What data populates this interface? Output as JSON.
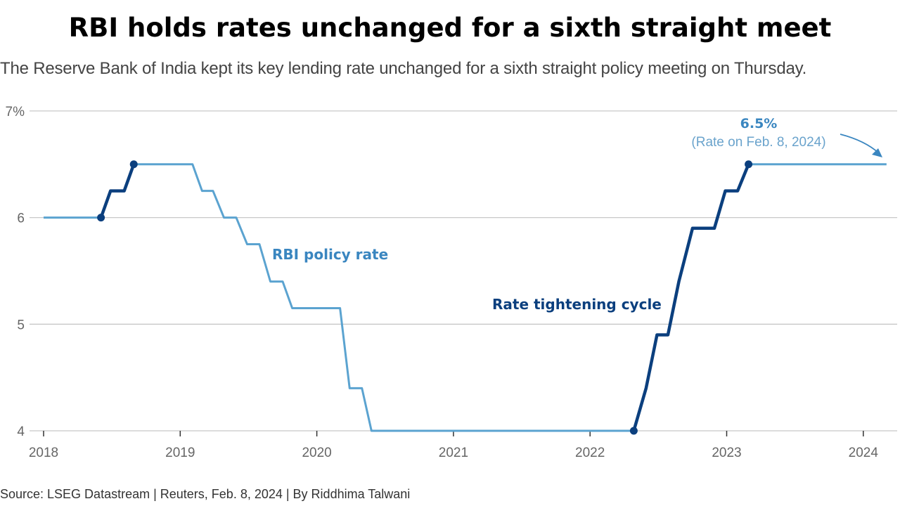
{
  "title": "RBI holds rates unchanged for a sixth straight meet",
  "subtitle": "The Reserve Bank of India kept its key lending rate unchanged for a sixth straight policy meeting on Thursday.",
  "source": "Source: LSEG Datastream | Reuters, Feb. 8, 2024 | By Riddhima Talwani",
  "chart_data": {
    "type": "line",
    "title": "RBI holds rates unchanged for a sixth straight meet",
    "xlabel": "",
    "ylabel": "",
    "xlim": [
      2018,
      2024.2
    ],
    "ylim": [
      4,
      7
    ],
    "y_ticks": [
      {
        "v": 7,
        "label": "7%"
      },
      {
        "v": 6,
        "label": "6"
      },
      {
        "v": 5,
        "label": "5"
      },
      {
        "v": 4,
        "label": "4"
      }
    ],
    "x_ticks": [
      {
        "v": 2018,
        "label": "2018"
      },
      {
        "v": 2019,
        "label": "2019"
      },
      {
        "v": 2020,
        "label": "2020"
      },
      {
        "v": 2021,
        "label": "2021"
      },
      {
        "v": 2022,
        "label": "2022"
      },
      {
        "v": 2023,
        "label": "2023"
      },
      {
        "v": 2024,
        "label": "2024"
      }
    ],
    "grid": true,
    "colors": {
      "policy": "#5ba3d0",
      "tightening": "#0b3f7e",
      "annotation": "#3a86c0"
    },
    "series": [
      {
        "name": "RBI policy rate",
        "x": [
          2018.0,
          2018.42,
          2018.49,
          2018.59,
          2018.66,
          2019.09,
          2019.16,
          2019.24,
          2019.32,
          2019.41,
          2019.49,
          2019.58,
          2019.66,
          2019.75,
          2019.82,
          2020.17,
          2020.24,
          2020.33,
          2020.4,
          2022.32,
          2022.41,
          2022.49,
          2022.57,
          2022.65,
          2022.75,
          2022.91,
          2022.99,
          2023.08,
          2023.16,
          2024.17
        ],
        "y": [
          6.0,
          6.0,
          6.25,
          6.25,
          6.5,
          6.5,
          6.25,
          6.25,
          6.0,
          6.0,
          5.75,
          5.75,
          5.4,
          5.4,
          5.15,
          5.15,
          4.4,
          4.4,
          4.0,
          4.0,
          4.4,
          4.9,
          4.9,
          5.4,
          5.9,
          5.9,
          6.25,
          6.25,
          6.5,
          6.5
        ]
      },
      {
        "name": "Rate tightening cycle",
        "segments": [
          {
            "x": [
              2018.42,
              2018.49,
              2018.59,
              2018.66
            ],
            "y": [
              6.0,
              6.25,
              6.25,
              6.5
            ]
          },
          {
            "x": [
              2022.32,
              2022.41,
              2022.49,
              2022.57,
              2022.65,
              2022.75,
              2022.91,
              2022.99,
              2023.08,
              2023.16
            ],
            "y": [
              4.0,
              4.4,
              4.9,
              4.9,
              5.4,
              5.9,
              5.9,
              6.25,
              6.25,
              6.5
            ]
          }
        ]
      }
    ],
    "annotations": {
      "policy_label": "RBI policy rate",
      "tightening_label": "Rate tightening cycle",
      "latest_value": "6.5%",
      "latest_note": "(Rate on Feb. 8, 2024)"
    }
  }
}
